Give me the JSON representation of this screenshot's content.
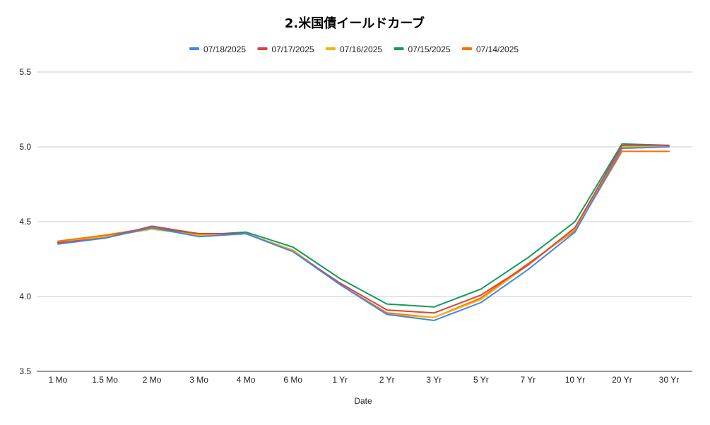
{
  "chart_data": {
    "type": "line",
    "title": "2.米国債イールドカーブ",
    "xlabel": "Date",
    "ylabel": "",
    "categories": [
      "1 Mo",
      "1.5 Mo",
      "2 Mo",
      "3 Mo",
      "4 Mo",
      "6 Mo",
      "1 Yr",
      "2 Yr",
      "3 Yr",
      "5 Yr",
      "7 Yr",
      "10 Yr",
      "20 Yr",
      "30 Yr"
    ],
    "ylim": [
      3.5,
      5.5
    ],
    "yticks": [
      "3.5",
      "4.0",
      "4.5",
      "5.0",
      "5.5"
    ],
    "grid": true,
    "legend_position": "top",
    "series": [
      {
        "name": "07/18/2025",
        "color": "#4285F4",
        "values": [
          4.35,
          4.39,
          4.46,
          4.4,
          4.42,
          4.3,
          4.08,
          3.88,
          3.84,
          3.96,
          4.18,
          4.43,
          4.99,
          5.0
        ]
      },
      {
        "name": "07/17/2025",
        "color": "#DB4437",
        "values": [
          4.36,
          4.39,
          4.47,
          4.42,
          4.42,
          4.3,
          4.09,
          3.91,
          3.89,
          4.01,
          4.21,
          4.46,
          5.01,
          5.01
        ]
      },
      {
        "name": "07/16/2025",
        "color": "#F4B400",
        "values": [
          4.36,
          4.4,
          4.45,
          4.41,
          4.42,
          4.31,
          4.08,
          3.88,
          3.86,
          3.98,
          4.21,
          4.45,
          5.0,
          5.0
        ]
      },
      {
        "name": "07/15/2025",
        "color": "#0F9D58",
        "values": [
          4.36,
          4.4,
          4.46,
          4.41,
          4.43,
          4.33,
          4.12,
          3.95,
          3.93,
          4.05,
          4.26,
          4.5,
          5.02,
          5.01
        ]
      },
      {
        "name": "07/14/2025",
        "color": "#FF6D01",
        "values": [
          4.37,
          4.41,
          4.46,
          4.42,
          4.42,
          4.31,
          4.08,
          3.89,
          3.86,
          3.99,
          4.22,
          4.44,
          4.97,
          4.97
        ]
      }
    ]
  }
}
